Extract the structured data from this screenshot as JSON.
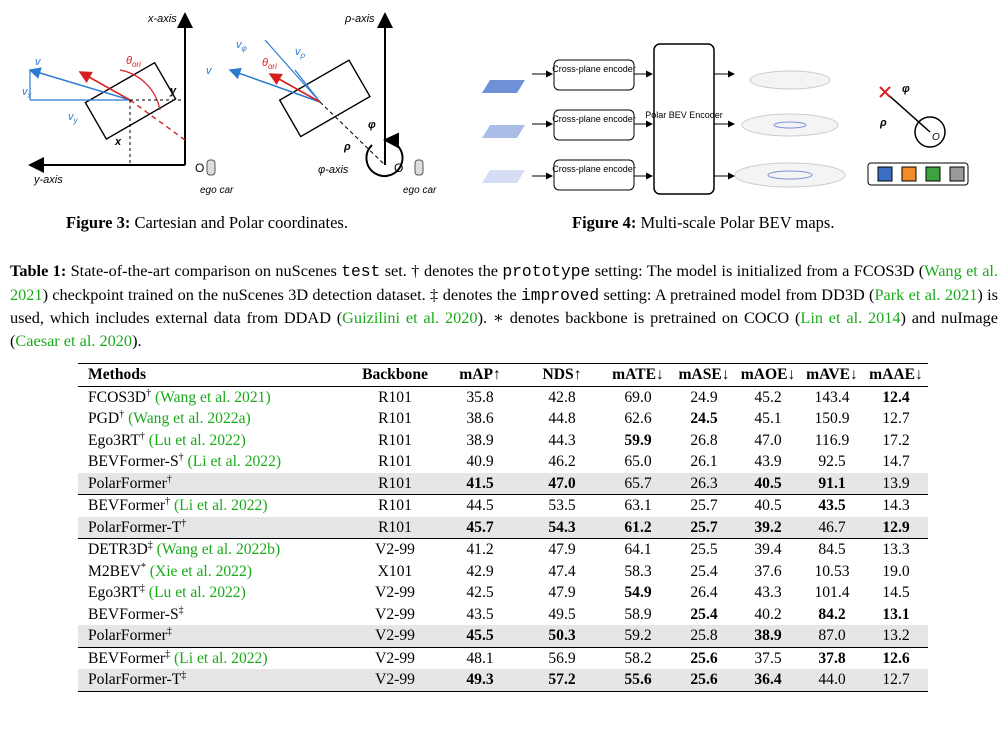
{
  "figure3": {
    "caption_label": "Figure 3:",
    "caption_text": " Cartesian and Polar coordinates.",
    "labels": {
      "x_axis": "x-axis",
      "y_axis": "y-axis",
      "v": "v",
      "vx": "v",
      "vx_sub": "x",
      "vy": "v",
      "vy_sub": "y",
      "theta": "θ",
      "theta_sub": "ori",
      "y": "y",
      "x": "x",
      "O": "O",
      "ego_car": "ego car",
      "rho_axis": "ρ-axis",
      "phi_axis": "φ-axis",
      "vphi": "v",
      "vphi_sub": "φ",
      "vrho": "v",
      "vrho_sub": "ρ",
      "v2": "v",
      "theta2": "θ",
      "theta2_sub": "ori",
      "phi": "φ",
      "rho": "ρ",
      "O2": "O",
      "ego_car2": "ego car"
    }
  },
  "figure4": {
    "caption_label": "Figure 4:",
    "caption_text": " Multi-scale Polar BEV maps.",
    "encoders": [
      "Cross-plane encoder",
      "Cross-plane encoder",
      "Cross-plane encoder"
    ],
    "bev_encoder": "Polar BEV Encoder",
    "phi": "φ",
    "rho": "ρ",
    "O": "O",
    "legend_colors": [
      "#3a6fc4",
      "#f28c28",
      "#3fa23f",
      "#9a9a9a"
    ]
  },
  "table_caption": {
    "label": "Table 1:",
    "t1": " State-of-the-art comparison on nuScenes ",
    "m1": "test",
    "t2": " set. † denotes the ",
    "m2": "prototype",
    "t3": " setting: The model is initialized from a FCOS3D (",
    "c1": "Wang et al. 2021",
    "t4": ") checkpoint trained on the nuScenes 3D detection dataset. ‡ denotes the ",
    "m3": "improved",
    "t5": " setting: A pretrained model from DD3D (",
    "c2": "Park et al. 2021",
    "t6": ") is used, which includes external data from DDAD (",
    "c3": "Guizilini et al. 2020",
    "t7": "). ∗ denotes backbone is pretrained on COCO (",
    "c4": "Lin et al. 2014",
    "t8": ") and nuImage (",
    "c5": "Caesar et al. 2020",
    "t9": ")."
  },
  "table": {
    "headers": [
      "Methods",
      "Backbone",
      "mAP↑",
      "NDS↑",
      "mATE↓",
      "mASE↓",
      "mAOE↓",
      "mAVE↓",
      "mAAE↓"
    ],
    "rows": [
      {
        "name": "FCOS3D",
        "sup": "†",
        "cite": "Wang et al. 2021",
        "backbone": "R101",
        "values": [
          "35.8",
          "42.8",
          "69.0",
          "24.9",
          "45.2",
          "143.4",
          "12.4"
        ],
        "bold": [
          6
        ]
      },
      {
        "name": "PGD",
        "sup": "†",
        "cite": "Wang et al. 2022a",
        "backbone": "R101",
        "values": [
          "38.6",
          "44.8",
          "62.6",
          "24.5",
          "45.1",
          "150.9",
          "12.7"
        ],
        "bold": [
          3
        ]
      },
      {
        "name": "Ego3RT",
        "sup": "†",
        "cite": "Lu et al. 2022",
        "backbone": "R101",
        "values": [
          "38.9",
          "44.3",
          "59.9",
          "26.8",
          "47.0",
          "116.9",
          "17.2"
        ],
        "bold": [
          2
        ]
      },
      {
        "name": "BEVFormer-S",
        "sup": "†",
        "cite": "Li et al. 2022",
        "backbone": "R101",
        "values": [
          "40.9",
          "46.2",
          "65.0",
          "26.1",
          "43.9",
          "92.5",
          "14.7"
        ],
        "bold": []
      },
      {
        "name": "PolarFormer",
        "sup": "†",
        "cite": "",
        "backbone": "R101",
        "values": [
          "41.5",
          "47.0",
          "65.7",
          "26.3",
          "40.5",
          "91.1",
          "13.9"
        ],
        "bold": [
          0,
          1,
          4,
          5
        ],
        "shade": true
      },
      {
        "name": "BEVFormer",
        "sup": "†",
        "cite": "Li et al. 2022",
        "backbone": "R101",
        "values": [
          "44.5",
          "53.5",
          "63.1",
          "25.7",
          "40.5",
          "43.5",
          "14.3"
        ],
        "bold": [
          5
        ],
        "group": true
      },
      {
        "name": "PolarFormer-T",
        "sup": "†",
        "cite": "",
        "backbone": "R101",
        "values": [
          "45.7",
          "54.3",
          "61.2",
          "25.7",
          "39.2",
          "46.7",
          "12.9"
        ],
        "bold": [
          0,
          1,
          2,
          3,
          4,
          6
        ],
        "shade": true
      },
      {
        "name": "DETR3D",
        "sup": "‡",
        "cite": "Wang et al. 2022b",
        "backbone": "V2-99",
        "values": [
          "41.2",
          "47.9",
          "64.1",
          "25.5",
          "39.4",
          "84.5",
          "13.3"
        ],
        "bold": [],
        "group": true
      },
      {
        "name": "M2BEV",
        "sup": "*",
        "cite": "Xie et al. 2022",
        "backbone": "X101",
        "values": [
          "42.9",
          "47.4",
          "58.3",
          "25.4",
          "37.6",
          "10.53",
          "19.0"
        ],
        "bold": []
      },
      {
        "name": "Ego3RT",
        "sup": "‡",
        "cite": "Lu et al. 2022",
        "backbone": "V2-99",
        "values": [
          "42.5",
          "47.9",
          "54.9",
          "26.4",
          "43.3",
          "101.4",
          "14.5"
        ],
        "bold": [
          2
        ]
      },
      {
        "name": "BEVFormer-S",
        "sup": "‡",
        "cite": "",
        "backbone": "V2-99",
        "values": [
          "43.5",
          "49.5",
          "58.9",
          "25.4",
          "40.2",
          "84.2",
          "13.1"
        ],
        "bold": [
          3,
          5,
          6
        ]
      },
      {
        "name": "PolarFormer",
        "sup": "‡",
        "cite": "",
        "backbone": "V2-99",
        "values": [
          "45.5",
          "50.3",
          "59.2",
          "25.8",
          "38.9",
          "87.0",
          "13.2"
        ],
        "bold": [
          0,
          1,
          4
        ],
        "shade": true
      },
      {
        "name": "BEVFormer",
        "sup": "‡",
        "cite": "Li et al. 2022",
        "backbone": "V2-99",
        "values": [
          "48.1",
          "56.9",
          "58.2",
          "25.6",
          "37.5",
          "37.8",
          "12.6"
        ],
        "bold": [
          3,
          5,
          6
        ],
        "group": true
      },
      {
        "name": "PolarFormer-T",
        "sup": "‡",
        "cite": "",
        "backbone": "V2-99",
        "values": [
          "49.3",
          "57.2",
          "55.6",
          "25.6",
          "36.4",
          "44.0",
          "12.7"
        ],
        "bold": [
          0,
          1,
          2,
          3,
          4
        ],
        "shade": true
      }
    ]
  }
}
